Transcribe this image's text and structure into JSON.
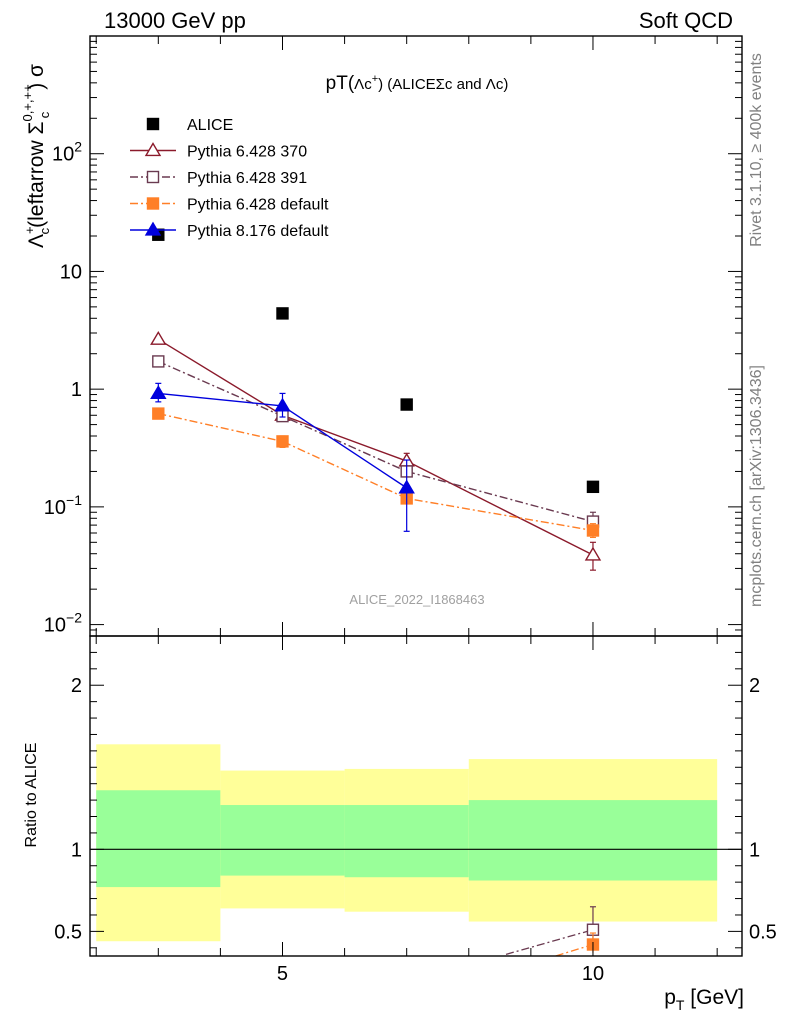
{
  "header": {
    "left": "13000 GeV pp",
    "right": "Soft QCD"
  },
  "side_labels": {
    "top": "Rivet 3.1.10, ≥ 400k events",
    "bottom": "mcplots.cern.ch [arXiv:1306.3436]"
  },
  "chart_data": [
    {
      "type": "scatter",
      "title_parts": [
        "pT(",
        "Λc",
        "+",
        ") (ALICE",
        "Σc and ",
        "Λc",
        ")"
      ],
      "ylabel_parts": [
        "Λ",
        "+",
        "c",
        "(leftarrow ",
        "Σ",
        "0,+,++",
        "c",
        ") σ"
      ],
      "analysis_id": "ALICE_2022_I1868463",
      "yscale": "log",
      "ylim": [
        0.008,
        1000
      ],
      "yticks": [
        {
          "value": 0.01,
          "base": "10",
          "exp": "−2"
        },
        {
          "value": 0.1,
          "base": "10",
          "exp": "−1"
        },
        {
          "value": 1,
          "base": "1",
          "exp": ""
        },
        {
          "value": 10,
          "base": "10",
          "exp": ""
        },
        {
          "value": 100,
          "base": "10",
          "exp": "2"
        }
      ],
      "xlim": [
        1.9,
        12.4
      ],
      "legend_position": "top-left",
      "series": [
        {
          "name": "ALICE",
          "color": "#000000",
          "marker": "filled-square",
          "line": "none",
          "x": [
            3,
            5,
            7,
            10
          ],
          "y": [
            20.5,
            4.4,
            0.74,
            0.148
          ]
        },
        {
          "name": "Pythia 6.428 370",
          "color": "#8b1a2b",
          "marker": "open-triangle",
          "line": "solid",
          "x": [
            3,
            5,
            7,
            10
          ],
          "y": [
            2.65,
            0.6,
            0.245,
            0.039
          ],
          "err_low": [
            2.55,
            0.57,
            0.215,
            0.029
          ],
          "err_high": [
            2.75,
            0.64,
            0.285,
            0.05
          ]
        },
        {
          "name": "Pythia 6.428 391",
          "color": "#6a3a50",
          "marker": "open-square",
          "line": "dashdot",
          "x": [
            3,
            5,
            7,
            10
          ],
          "y": [
            1.72,
            0.59,
            0.2,
            0.075
          ],
          "err_low": [
            1.65,
            0.56,
            0.18,
            0.064
          ],
          "err_high": [
            1.8,
            0.63,
            0.22,
            0.09
          ]
        },
        {
          "name": "Pythia 6.428 default",
          "color": "#ff7f27",
          "marker": "filled-square",
          "line": "dashdot",
          "x": [
            3,
            5,
            7,
            10
          ],
          "y": [
            0.62,
            0.36,
            0.118,
            0.063
          ],
          "err_low": [
            0.57,
            0.32,
            0.112,
            0.055
          ],
          "err_high": [
            0.67,
            0.4,
            0.124,
            0.072
          ]
        },
        {
          "name": "Pythia 8.176 default",
          "color": "#0000dd",
          "marker": "filled-triangle",
          "line": "solid",
          "x": [
            3,
            5,
            7
          ],
          "y": [
            0.92,
            0.72,
            0.145
          ],
          "err_low": [
            0.78,
            0.58,
            0.062
          ],
          "err_high": [
            1.12,
            0.92,
            0.25
          ]
        }
      ]
    },
    {
      "type": "scatter",
      "ylabel": "Ratio to ALICE",
      "xlabel_main": "p",
      "xlabel_sub": "T",
      "xlabel_unit": " [GeV]",
      "ylim": [
        0.35,
        2.3
      ],
      "yticks": [
        {
          "value": 0.5,
          "label": "0.5"
        },
        {
          "value": 1,
          "label": "1"
        },
        {
          "value": 2,
          "label": "2"
        }
      ],
      "xlim": [
        1.9,
        12.4
      ],
      "xticks": [
        {
          "value": 5,
          "label": "5"
        },
        {
          "value": 10,
          "label": "10"
        }
      ],
      "bands": [
        {
          "xlo": 2,
          "xhi": 4,
          "yellow": [
            0.44,
            1.64
          ],
          "green": [
            0.77,
            1.36
          ]
        },
        {
          "xlo": 4,
          "xhi": 6,
          "yellow": [
            0.64,
            1.48
          ],
          "green": [
            0.84,
            1.27
          ]
        },
        {
          "xlo": 6,
          "xhi": 8,
          "yellow": [
            0.62,
            1.49
          ],
          "green": [
            0.83,
            1.27
          ]
        },
        {
          "xlo": 8,
          "xhi": 12,
          "yellow": [
            0.56,
            1.55
          ],
          "green": [
            0.81,
            1.3
          ]
        }
      ],
      "ratio_points": [
        {
          "series": "Pythia 6.428 391",
          "x": 10,
          "y": 0.51,
          "err_low": 0.43,
          "err_high": 0.65
        },
        {
          "series": "Pythia 6.428 default",
          "x": 10,
          "y": 0.42,
          "err_low": 0.37,
          "err_high": 0.49
        }
      ],
      "ratio_lines": [
        {
          "series": "Pythia 6.428 391",
          "x": [
            8.6,
            10
          ],
          "y": [
            0.36,
            0.51
          ]
        },
        {
          "series": "Pythia 6.428 default",
          "x": [
            9.4,
            10
          ],
          "y": [
            0.35,
            0.42
          ]
        }
      ]
    }
  ]
}
